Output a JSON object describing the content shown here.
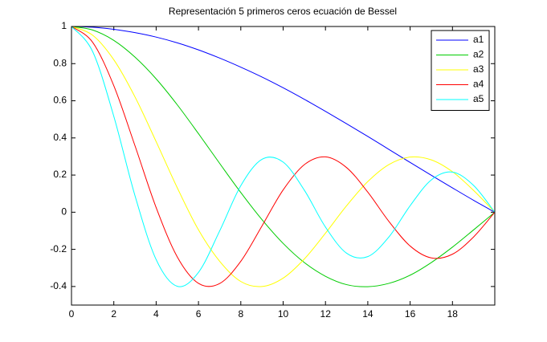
{
  "chart_data": {
    "type": "line",
    "title": "Representación 5 primeros ceros ecuación de Bessel",
    "x": [
      0,
      1,
      2,
      3,
      4,
      5,
      6,
      7,
      8,
      9,
      10,
      11,
      12,
      13,
      14,
      15,
      16,
      17,
      18,
      19,
      20
    ],
    "series": [
      {
        "name": "a1",
        "color": "#0000ff",
        "values": [
          1,
          0.996,
          0.985,
          0.967,
          0.943,
          0.912,
          0.874,
          0.83,
          0.781,
          0.728,
          0.67,
          0.608,
          0.543,
          0.476,
          0.408,
          0.338,
          0.268,
          0.199,
          0.131,
          0.064,
          0
        ]
      },
      {
        "name": "a2",
        "color": "#00cc00",
        "values": [
          1,
          0.981,
          0.925,
          0.835,
          0.718,
          0.578,
          0.423,
          0.263,
          0.106,
          -0.04,
          -0.168,
          -0.271,
          -0.345,
          -0.39,
          -0.401,
          -0.383,
          -0.339,
          -0.271,
          -0.188,
          -0.095,
          0
        ]
      },
      {
        "name": "a3",
        "color": "#ffff00",
        "values": [
          1,
          0.953,
          0.821,
          0.621,
          0.38,
          0.131,
          -0.095,
          -0.264,
          -0.373,
          -0.4,
          -0.355,
          -0.252,
          -0.113,
          0.035,
          0.165,
          0.257,
          0.297,
          0.282,
          0.218,
          0.117,
          0
        ]
      },
      {
        "name": "a4",
        "color": "#ff0000",
        "values": [
          1,
          0.915,
          0.681,
          0.358,
          0.025,
          -0.241,
          -0.383,
          -0.384,
          -0.264,
          -0.074,
          0.12,
          0.256,
          0.298,
          0.24,
          0.108,
          -0.05,
          -0.182,
          -0.246,
          -0.226,
          -0.133,
          0
        ]
      },
      {
        "name": "a5",
        "color": "#00ffff",
        "values": [
          1,
          0.865,
          0.516,
          0.089,
          -0.255,
          -0.399,
          -0.324,
          -0.101,
          0.143,
          0.285,
          0.27,
          0.119,
          -0.08,
          -0.221,
          -0.239,
          -0.133,
          0.035,
          0.174,
          0.216,
          0.144,
          0
        ]
      }
    ],
    "xlim": [
      0,
      20
    ],
    "xticks": [
      0,
      2,
      4,
      6,
      8,
      10,
      12,
      14,
      16,
      18
    ],
    "ylim": [
      -0.5,
      1
    ],
    "yticks": [
      -0.4,
      -0.2,
      0,
      0.2,
      0.4,
      0.6,
      0.8,
      1
    ],
    "legend": "top-right"
  }
}
